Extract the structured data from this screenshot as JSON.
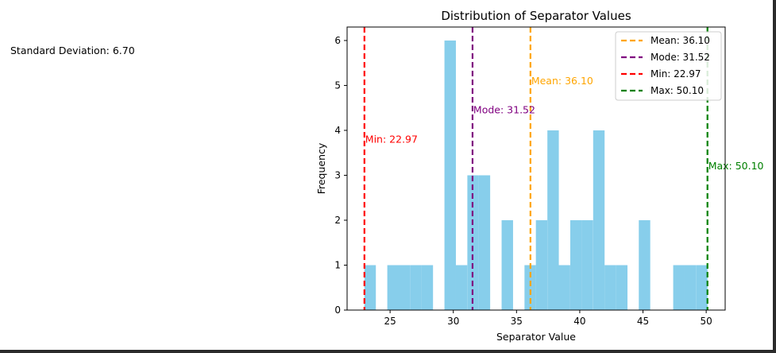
{
  "side_text": {
    "std_dev": "Standard Deviation: 6.70"
  },
  "chart_data": {
    "type": "bar",
    "title": "Distribution of Separator Values",
    "xlabel": "Separator Value",
    "ylabel": "Frequency",
    "xlim": [
      21.6,
      51.5
    ],
    "ylim": [
      0,
      6.3
    ],
    "xticks": [
      25,
      30,
      35,
      40,
      45,
      50
    ],
    "yticks": [
      0,
      1,
      2,
      3,
      4,
      5,
      6
    ],
    "bar_color": "#87ceeb",
    "bin_width": 0.9043,
    "bins": [
      {
        "left": 22.97,
        "count": 1
      },
      {
        "left": 23.87,
        "count": 0
      },
      {
        "left": 24.78,
        "count": 1
      },
      {
        "left": 25.68,
        "count": 1
      },
      {
        "left": 26.59,
        "count": 1
      },
      {
        "left": 27.49,
        "count": 1
      },
      {
        "left": 28.4,
        "count": 0
      },
      {
        "left": 29.3,
        "count": 6
      },
      {
        "left": 30.2,
        "count": 1
      },
      {
        "left": 31.11,
        "count": 3
      },
      {
        "left": 32.01,
        "count": 3
      },
      {
        "left": 32.92,
        "count": 0
      },
      {
        "left": 33.82,
        "count": 2
      },
      {
        "left": 34.73,
        "count": 0
      },
      {
        "left": 35.63,
        "count": 1
      },
      {
        "left": 36.53,
        "count": 2
      },
      {
        "left": 37.44,
        "count": 4
      },
      {
        "left": 38.34,
        "count": 1
      },
      {
        "left": 39.25,
        "count": 2
      },
      {
        "left": 40.15,
        "count": 2
      },
      {
        "left": 41.06,
        "count": 4
      },
      {
        "left": 41.96,
        "count": 1
      },
      {
        "left": 42.87,
        "count": 1
      },
      {
        "left": 43.77,
        "count": 0
      },
      {
        "left": 44.67,
        "count": 2
      },
      {
        "left": 45.58,
        "count": 0
      },
      {
        "left": 46.48,
        "count": 0
      },
      {
        "left": 47.39,
        "count": 1
      },
      {
        "left": 48.29,
        "count": 1
      },
      {
        "left": 49.2,
        "count": 1
      }
    ],
    "lines": [
      {
        "name": "Mean: 36.10",
        "value": 36.1,
        "color": "#ffa500",
        "label": "Mean: 36.10",
        "label_y": 5.1
      },
      {
        "name": "Mode: 31.52",
        "value": 31.52,
        "color": "#800080",
        "label": "Mode: 31.52",
        "label_y": 4.45
      },
      {
        "name": "Min: 22.97",
        "value": 22.97,
        "color": "#ff0000",
        "label": "Min: 22.97",
        "label_y": 3.8
      },
      {
        "name": "Max: 50.10",
        "value": 50.1,
        "color": "#008000",
        "label": "Max: 50.10",
        "label_y": 3.2
      }
    ],
    "legend_position": "top-right"
  }
}
